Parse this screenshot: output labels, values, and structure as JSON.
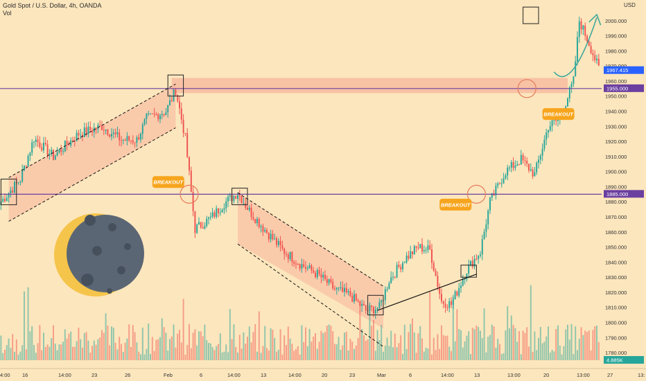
{
  "header": {
    "title": "Gold Spot / U.S. Dollar, 4h, OANDA",
    "volume_label": "Vol"
  },
  "price_axis": {
    "currency": "USD",
    "ticks": [
      "2000.000",
      "1990.000",
      "1980.000",
      "1970.000",
      "1960.000",
      "1950.000",
      "1940.000",
      "1930.000",
      "1920.000",
      "1910.000",
      "1900.000",
      "1890.000",
      "1880.000",
      "1870.000",
      "1860.000",
      "1850.000",
      "1840.000",
      "1830.000",
      "1820.000",
      "1810.000",
      "1800.000",
      "1790.000",
      "1780.000"
    ],
    "badges": [
      {
        "text": "1967.415",
        "color": "#2962FF"
      },
      {
        "text": "1955.000",
        "color": "#6A3FA0"
      },
      {
        "text": "1885.000",
        "color": "#6A3FA0"
      },
      {
        "text": "4.885K",
        "color": "#26A69A"
      }
    ]
  },
  "time_axis": {
    "ticks": [
      "4:00",
      "16",
      "14:00",
      "23",
      "26",
      "Feb",
      "6",
      "14:00",
      "13",
      "14:00",
      "20",
      "23",
      "Mar",
      "6",
      "14:00",
      "13",
      "13:00",
      "20",
      "13:00",
      "27",
      "13:"
    ]
  },
  "annotations": {
    "breakouts": [
      "BREAKOUT",
      "BREAKOUT",
      "BREAKOUT"
    ],
    "levels": [
      1955,
      1885
    ],
    "colors": {
      "zone": "#F7B59C",
      "level": "#6A3FA0",
      "badge": "#F7A51E",
      "box": "#222222",
      "up": "#26A69A",
      "down": "#EF5350",
      "arrow": "#3FA89A"
    }
  },
  "chart_data": {
    "type": "candlestick",
    "title": "Gold Spot / U.S. Dollar, 4h, OANDA",
    "ylim": [
      1775,
      2010
    ],
    "grid": false,
    "key_levels": [
      1955,
      1885
    ],
    "resistance_zone": [
      1955,
      1960
    ],
    "path_points": [
      [
        0,
        1880
      ],
      [
        10,
        1895
      ],
      [
        17,
        1922
      ],
      [
        27,
        1910
      ],
      [
        40,
        1925
      ],
      [
        52,
        1930
      ],
      [
        62,
        1921
      ],
      [
        70,
        1921
      ],
      [
        75,
        1935
      ],
      [
        85,
        1940
      ],
      [
        90,
        1954
      ],
      [
        95,
        1922
      ],
      [
        100,
        1862
      ],
      [
        108,
        1869
      ],
      [
        115,
        1879
      ],
      [
        122,
        1886
      ],
      [
        128,
        1874
      ],
      [
        135,
        1863
      ],
      [
        145,
        1848
      ],
      [
        155,
        1838
      ],
      [
        163,
        1832
      ],
      [
        172,
        1822
      ],
      [
        180,
        1818
      ],
      [
        188,
        1808
      ],
      [
        195,
        1810
      ],
      [
        200,
        1828
      ],
      [
        208,
        1842
      ],
      [
        215,
        1850
      ],
      [
        221,
        1848
      ],
      [
        227,
        1814
      ],
      [
        232,
        1812
      ],
      [
        240,
        1835
      ],
      [
        247,
        1847
      ],
      [
        252,
        1880
      ],
      [
        260,
        1900
      ],
      [
        268,
        1908
      ],
      [
        275,
        1898
      ],
      [
        282,
        1930
      ],
      [
        288,
        1935
      ],
      [
        295,
        1960
      ],
      [
        298,
        2000
      ],
      [
        303,
        1985
      ],
      [
        308,
        1968
      ]
    ],
    "volume_unit": "K",
    "last_volume": "4.885K"
  }
}
